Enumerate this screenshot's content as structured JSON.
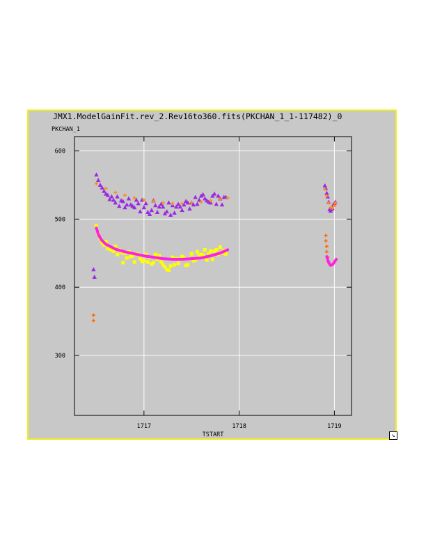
{
  "window": {
    "title": "JMX1.ModelGainFit.rev_2.Rev16to360.fits(PKCHAN_1_1-117482)_0",
    "resize_icon": "resize-corner-icon"
  },
  "chart_data": {
    "type": "scatter",
    "title": "JMX1.ModelGainFit.rev_2.Rev16to360.fits(PKCHAN_1_1-117482)_0",
    "xlabel": "TSTART",
    "ylabel": "PKCHAN_1",
    "xlim": [
      1716.27,
      1719.18
    ],
    "ylim": [
      212,
      621
    ],
    "xticks": [
      1717,
      1718,
      1719
    ],
    "yticks": [
      300,
      400,
      500,
      600
    ],
    "grid": true,
    "background": "#c8c8c8",
    "series": [
      {
        "marker": "triangle",
        "color": "#9a2be2",
        "points": [
          [
            1716.5,
            565
          ],
          [
            1716.52,
            557
          ],
          [
            1716.54,
            550
          ],
          [
            1716.56,
            546
          ],
          [
            1716.58,
            541
          ],
          [
            1716.6,
            537
          ],
          [
            1716.62,
            535
          ],
          [
            1716.64,
            529
          ],
          [
            1716.66,
            533
          ],
          [
            1716.68,
            528
          ],
          [
            1716.7,
            524
          ],
          [
            1716.72,
            533
          ],
          [
            1716.74,
            519
          ],
          [
            1716.76,
            527
          ],
          [
            1716.78,
            526
          ],
          [
            1716.8,
            517
          ],
          [
            1716.82,
            521
          ],
          [
            1716.84,
            530
          ],
          [
            1716.86,
            521
          ],
          [
            1716.88,
            519
          ],
          [
            1716.9,
            517
          ],
          [
            1716.92,
            528
          ],
          [
            1716.94,
            523
          ],
          [
            1716.96,
            511
          ],
          [
            1716.98,
            528
          ],
          [
            1717.0,
            517
          ],
          [
            1717.02,
            523
          ],
          [
            1717.04,
            510
          ],
          [
            1717.06,
            507
          ],
          [
            1717.08,
            513
          ],
          [
            1717.1,
            527
          ],
          [
            1717.12,
            520
          ],
          [
            1717.14,
            510
          ],
          [
            1717.16,
            518
          ],
          [
            1717.18,
            522
          ],
          [
            1717.2,
            518
          ],
          [
            1717.22,
            508
          ],
          [
            1717.24,
            511
          ],
          [
            1717.26,
            524
          ],
          [
            1717.28,
            506
          ],
          [
            1717.3,
            520
          ],
          [
            1717.32,
            509
          ],
          [
            1717.34,
            518
          ],
          [
            1717.36,
            522
          ],
          [
            1717.38,
            518
          ],
          [
            1717.4,
            513
          ],
          [
            1717.42,
            521
          ],
          [
            1717.44,
            526
          ],
          [
            1717.46,
            524
          ],
          [
            1717.48,
            515
          ],
          [
            1717.5,
            524
          ],
          [
            1717.52,
            521
          ],
          [
            1717.54,
            532
          ],
          [
            1717.56,
            522
          ],
          [
            1717.58,
            528
          ],
          [
            1717.6,
            534
          ],
          [
            1717.62,
            536
          ],
          [
            1717.64,
            530
          ],
          [
            1717.66,
            527
          ],
          [
            1717.68,
            525
          ],
          [
            1717.7,
            524
          ],
          [
            1717.72,
            534
          ],
          [
            1717.74,
            537
          ],
          [
            1717.76,
            522
          ],
          [
            1717.78,
            534
          ],
          [
            1717.8,
            530
          ],
          [
            1717.82,
            521
          ],
          [
            1717.84,
            532
          ],
          [
            1717.86,
            532
          ],
          [
            1718.9,
            549
          ],
          [
            1718.91,
            545
          ],
          [
            1718.92,
            538
          ],
          [
            1718.93,
            533
          ],
          [
            1718.94,
            525
          ],
          [
            1718.95,
            514
          ],
          [
            1718.96,
            512
          ],
          [
            1718.97,
            514
          ],
          [
            1718.98,
            516
          ],
          [
            1718.99,
            521
          ],
          [
            1719.0,
            523
          ],
          [
            1719.01,
            525
          ],
          [
            1716.47,
            426
          ],
          [
            1716.48,
            415
          ]
        ]
      },
      {
        "marker": "plus",
        "color": "#ff8c1a",
        "points": [
          [
            1716.5,
            552
          ],
          [
            1716.6,
            545
          ],
          [
            1716.7,
            539
          ],
          [
            1716.8,
            535
          ],
          [
            1716.9,
            531
          ],
          [
            1717.0,
            528
          ],
          [
            1717.1,
            526
          ],
          [
            1717.2,
            524
          ],
          [
            1717.3,
            523
          ],
          [
            1717.4,
            523
          ],
          [
            1717.5,
            524
          ],
          [
            1717.6,
            525
          ],
          [
            1717.7,
            527
          ],
          [
            1717.8,
            529
          ],
          [
            1717.88,
            531
          ],
          [
            1718.9,
            544
          ],
          [
            1718.92,
            534
          ],
          [
            1718.94,
            524
          ],
          [
            1718.96,
            517
          ],
          [
            1718.98,
            516
          ],
          [
            1719.0,
            520
          ],
          [
            1719.01,
            524
          ]
        ]
      },
      {
        "marker": "square",
        "color": "#ffff00",
        "points": [
          [
            1716.5,
            490
          ],
          [
            1716.52,
            479
          ],
          [
            1716.54,
            471
          ],
          [
            1716.56,
            466
          ],
          [
            1716.58,
            462
          ],
          [
            1716.6,
            467
          ],
          [
            1716.62,
            457
          ],
          [
            1716.64,
            456
          ],
          [
            1716.66,
            455
          ],
          [
            1716.68,
            453
          ],
          [
            1716.7,
            460
          ],
          [
            1716.72,
            448
          ],
          [
            1716.74,
            455
          ],
          [
            1716.76,
            451
          ],
          [
            1716.78,
            436
          ],
          [
            1716.8,
            450
          ],
          [
            1716.82,
            443
          ],
          [
            1716.84,
            452
          ],
          [
            1716.86,
            445
          ],
          [
            1716.88,
            446
          ],
          [
            1716.9,
            437
          ],
          [
            1716.92,
            449
          ],
          [
            1716.94,
            448
          ],
          [
            1716.96,
            442
          ],
          [
            1716.98,
            438
          ],
          [
            1717.0,
            439
          ],
          [
            1717.02,
            448
          ],
          [
            1717.04,
            437
          ],
          [
            1717.06,
            444
          ],
          [
            1717.08,
            434
          ],
          [
            1717.1,
            436
          ],
          [
            1717.12,
            448
          ],
          [
            1717.14,
            441
          ],
          [
            1717.16,
            446
          ],
          [
            1717.18,
            437
          ],
          [
            1717.2,
            433
          ],
          [
            1717.22,
            430
          ],
          [
            1717.24,
            426
          ],
          [
            1717.26,
            425
          ],
          [
            1717.28,
            431
          ],
          [
            1717.3,
            444
          ],
          [
            1717.32,
            433
          ],
          [
            1717.34,
            442
          ],
          [
            1717.36,
            435
          ],
          [
            1717.38,
            441
          ],
          [
            1717.4,
            445
          ],
          [
            1717.42,
            443
          ],
          [
            1717.44,
            432
          ],
          [
            1717.46,
            433
          ],
          [
            1717.48,
            442
          ],
          [
            1717.5,
            449
          ],
          [
            1717.52,
            439
          ],
          [
            1717.54,
            440
          ],
          [
            1717.56,
            452
          ],
          [
            1717.58,
            446
          ],
          [
            1717.6,
            448
          ],
          [
            1717.62,
            447
          ],
          [
            1717.64,
            455
          ],
          [
            1717.66,
            440
          ],
          [
            1717.68,
            449
          ],
          [
            1717.7,
            453
          ],
          [
            1717.72,
            441
          ],
          [
            1717.74,
            453
          ],
          [
            1717.76,
            455
          ],
          [
            1717.78,
            448
          ],
          [
            1717.8,
            459
          ],
          [
            1717.82,
            450
          ],
          [
            1717.84,
            454
          ],
          [
            1717.86,
            449
          ]
        ]
      },
      {
        "marker": "plus",
        "color": "#ff6a00",
        "points": [
          [
            1716.47,
            359
          ],
          [
            1716.47,
            351
          ],
          [
            1718.91,
            476
          ],
          [
            1718.91,
            468
          ],
          [
            1718.92,
            460
          ],
          [
            1718.92,
            452
          ],
          [
            1718.93,
            444
          ],
          [
            1718.94,
            437
          ]
        ]
      },
      {
        "marker": "line",
        "color": "#ff22dd",
        "points": [
          [
            1716.5,
            487
          ],
          [
            1716.52,
            478
          ],
          [
            1716.55,
            470
          ],
          [
            1716.6,
            463
          ],
          [
            1716.7,
            456
          ],
          [
            1716.8,
            452
          ],
          [
            1716.9,
            449
          ],
          [
            1717.0,
            446
          ],
          [
            1717.1,
            444
          ],
          [
            1717.2,
            442
          ],
          [
            1717.3,
            441
          ],
          [
            1717.4,
            441
          ],
          [
            1717.5,
            442
          ],
          [
            1717.6,
            443
          ],
          [
            1717.7,
            446
          ],
          [
            1717.8,
            450
          ],
          [
            1717.88,
            455
          ],
          [
            1718.92,
            445
          ],
          [
            1718.94,
            436
          ],
          [
            1718.96,
            432
          ],
          [
            1718.98,
            433
          ],
          [
            1719.0,
            437
          ],
          [
            1719.02,
            441
          ]
        ]
      }
    ]
  }
}
